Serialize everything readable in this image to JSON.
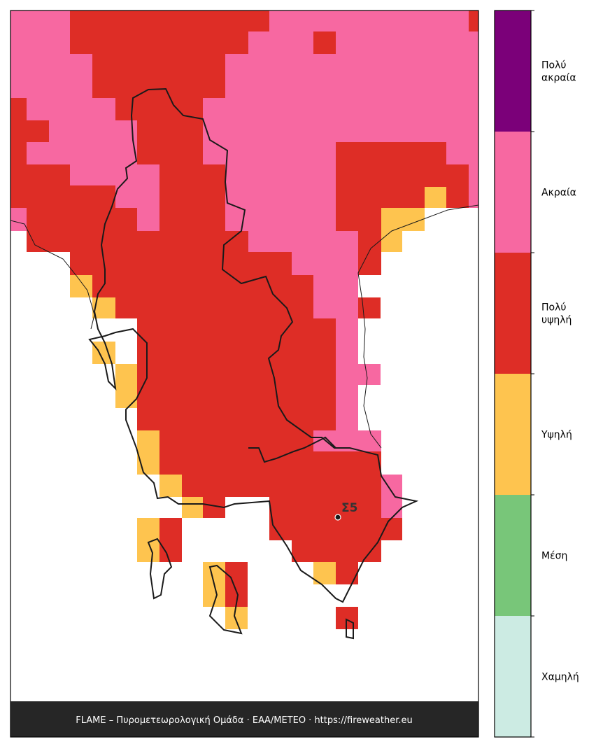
{
  "map": {
    "station": {
      "label": "Σ5"
    },
    "footer": "FLAME – Πυρομετεωρολογική Ομάδα · ΕΑΑ/METEO · https://fireweather.eu"
  },
  "legend": {
    "classes": [
      {
        "label": "Πολύ ακραία",
        "color": "#7b0079"
      },
      {
        "label": "Ακραία",
        "color": "#f768a1"
      },
      {
        "label": "Πολύ υψηλή",
        "color": "#de2d26"
      },
      {
        "label": "Υψηλή",
        "color": "#fec44f"
      },
      {
        "label": "Μέση",
        "color": "#78c679"
      },
      {
        "label": "Χαμηλή",
        "color": "#ccebe3"
      }
    ]
  }
}
